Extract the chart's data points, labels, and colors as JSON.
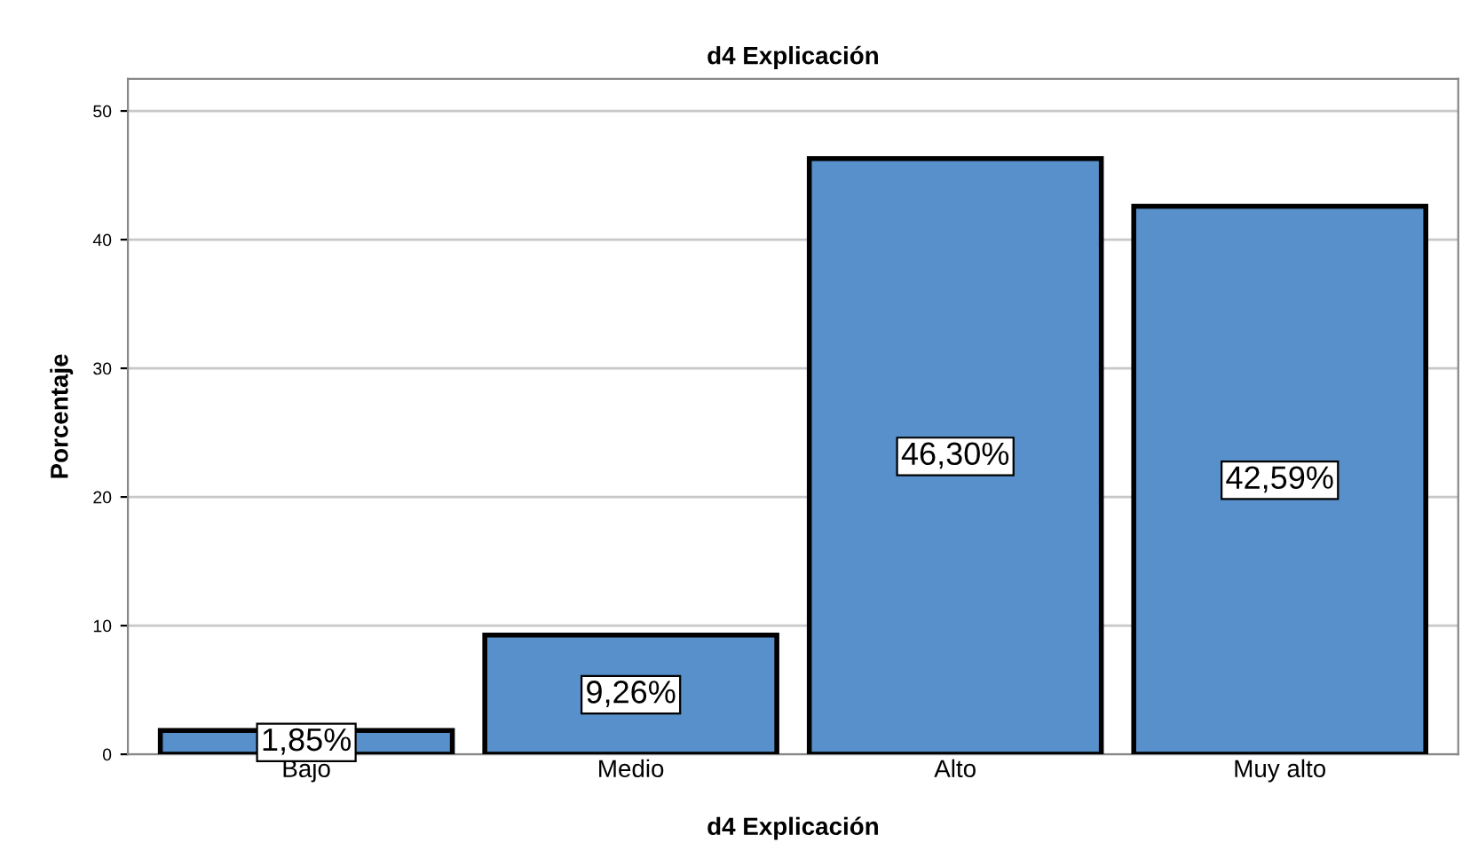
{
  "chart_data": {
    "type": "bar",
    "title": "d4 Explicación",
    "xlabel": "d4 Explicación",
    "ylabel": "Porcentaje",
    "categories": [
      "Bajo",
      "Medio",
      "Alto",
      "Muy alto"
    ],
    "values": [
      1.85,
      9.26,
      46.3,
      42.59
    ],
    "value_labels": [
      "1,85%",
      "9,26%",
      "46,30%",
      "42,59%"
    ],
    "color": "#5790ca",
    "ylim": [
      0,
      52.5
    ],
    "yticks": [
      0,
      10,
      20,
      30,
      40,
      50
    ],
    "grid": "y",
    "legend": false
  }
}
